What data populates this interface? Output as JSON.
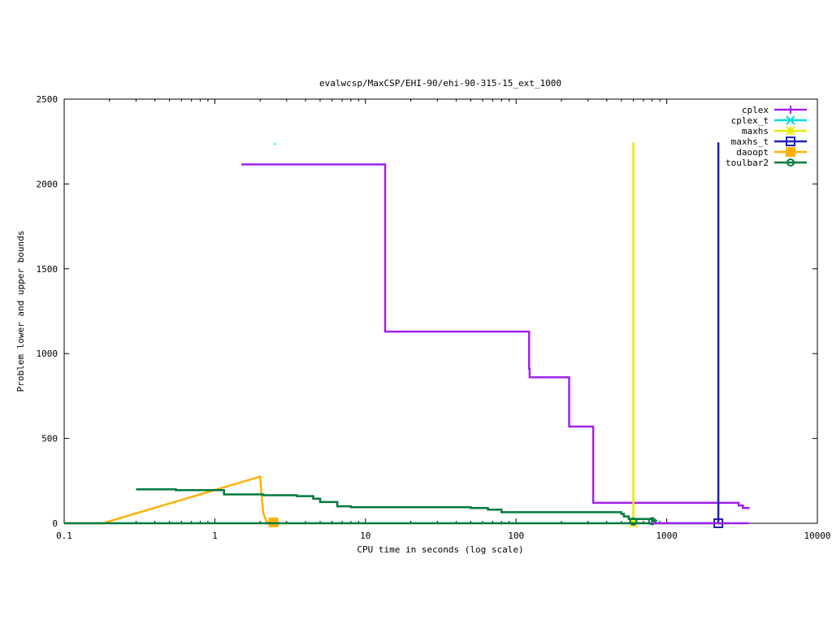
{
  "chart_data": {
    "type": "line",
    "title": "evalwcsp/MaxCSP/EHI-90/ehi-90-315-15_ext_1000",
    "xlabel": "CPU time in seconds (log scale)",
    "ylabel": "Problem lower and upper bounds",
    "x_scale": "log",
    "xlim": [
      0.1,
      10000
    ],
    "ylim": [
      0,
      2500
    ],
    "x_ticks": [
      {
        "value": 0.1,
        "label": "0.1"
      },
      {
        "value": 1,
        "label": "1"
      },
      {
        "value": 10,
        "label": "10"
      },
      {
        "value": 100,
        "label": "100"
      },
      {
        "value": 1000,
        "label": "1000"
      },
      {
        "value": 10000,
        "label": "10000"
      }
    ],
    "y_ticks": [
      {
        "value": 0,
        "label": "0"
      },
      {
        "value": 500,
        "label": "500"
      },
      {
        "value": 1000,
        "label": "1000"
      },
      {
        "value": 1500,
        "label": "1500"
      },
      {
        "value": 2000,
        "label": "2000"
      },
      {
        "value": 2500,
        "label": "2500"
      }
    ],
    "grid": false,
    "legend_position": "top-right",
    "series": [
      {
        "name": "cplex",
        "color": "#a020f0",
        "marker": "plus",
        "step": true,
        "points": [
          [
            1.5,
            2115
          ],
          [
            13.5,
            2115
          ],
          [
            13.5,
            1130
          ],
          [
            120,
            1130
          ],
          [
            122,
            910
          ],
          [
            123,
            860
          ],
          [
            220,
            860
          ],
          [
            225,
            570
          ],
          [
            320,
            570
          ],
          [
            325,
            120
          ],
          [
            2800,
            120
          ],
          [
            3000,
            105
          ],
          [
            3200,
            90
          ],
          [
            3500,
            85
          ]
        ],
        "marker_points": []
      },
      {
        "name": "cplex_t",
        "color": "#00dddd",
        "marker": "x",
        "step": false,
        "points": [
          [
            2.5,
            2235
          ]
        ],
        "marker_points": []
      },
      {
        "name": "maxhs",
        "color": "#e8e800",
        "marker": "star",
        "step": false,
        "points": [
          [
            600,
            0
          ],
          [
            600,
            2245
          ]
        ],
        "marker_points": [
          [
            600,
            0
          ]
        ]
      },
      {
        "name": "maxhs_t",
        "color": "#2020b0",
        "marker": "square",
        "step": false,
        "points": [
          [
            2200,
            0
          ],
          [
            2200,
            2245
          ]
        ],
        "marker_points": [
          [
            2200,
            0
          ]
        ]
      },
      {
        "name": "daoopt",
        "color": "#ffb000",
        "marker": "filled-square",
        "step": false,
        "points": [
          [
            0.1,
            0
          ],
          [
            0.18,
            0
          ],
          [
            2.0,
            275
          ],
          [
            2.05,
            150
          ],
          [
            2.1,
            60
          ],
          [
            2.2,
            10
          ],
          [
            2.45,
            5
          ]
        ],
        "marker_points": [
          [
            2.45,
            5
          ]
        ]
      },
      {
        "name": "toulbar2",
        "color": "#007a3d",
        "marker": "circle",
        "step": true,
        "points": [
          [
            0.3,
            200
          ],
          [
            0.55,
            195
          ],
          [
            1.15,
            170
          ],
          [
            2.1,
            165
          ],
          [
            3.5,
            160
          ],
          [
            4.5,
            145
          ],
          [
            5.0,
            125
          ],
          [
            6.5,
            100
          ],
          [
            8.0,
            95
          ],
          [
            50,
            90
          ],
          [
            65,
            80
          ],
          [
            80,
            65
          ],
          [
            500,
            55
          ],
          [
            520,
            40
          ],
          [
            560,
            25
          ],
          [
            800,
            15
          ],
          [
            850,
            10
          ]
        ],
        "marker_points": [
          [
            600,
            10
          ],
          [
            800,
            12
          ]
        ]
      },
      {
        "name": "",
        "color": "#007a3d",
        "marker": "none",
        "step": false,
        "points": [
          [
            0.1,
            0
          ],
          [
            2600,
            0
          ]
        ],
        "marker_points": []
      },
      {
        "name": "",
        "color": "#a020f0",
        "marker": "none",
        "step": false,
        "points": [
          [
            800,
            0
          ],
          [
            3500,
            0
          ]
        ],
        "marker_points": []
      }
    ]
  }
}
